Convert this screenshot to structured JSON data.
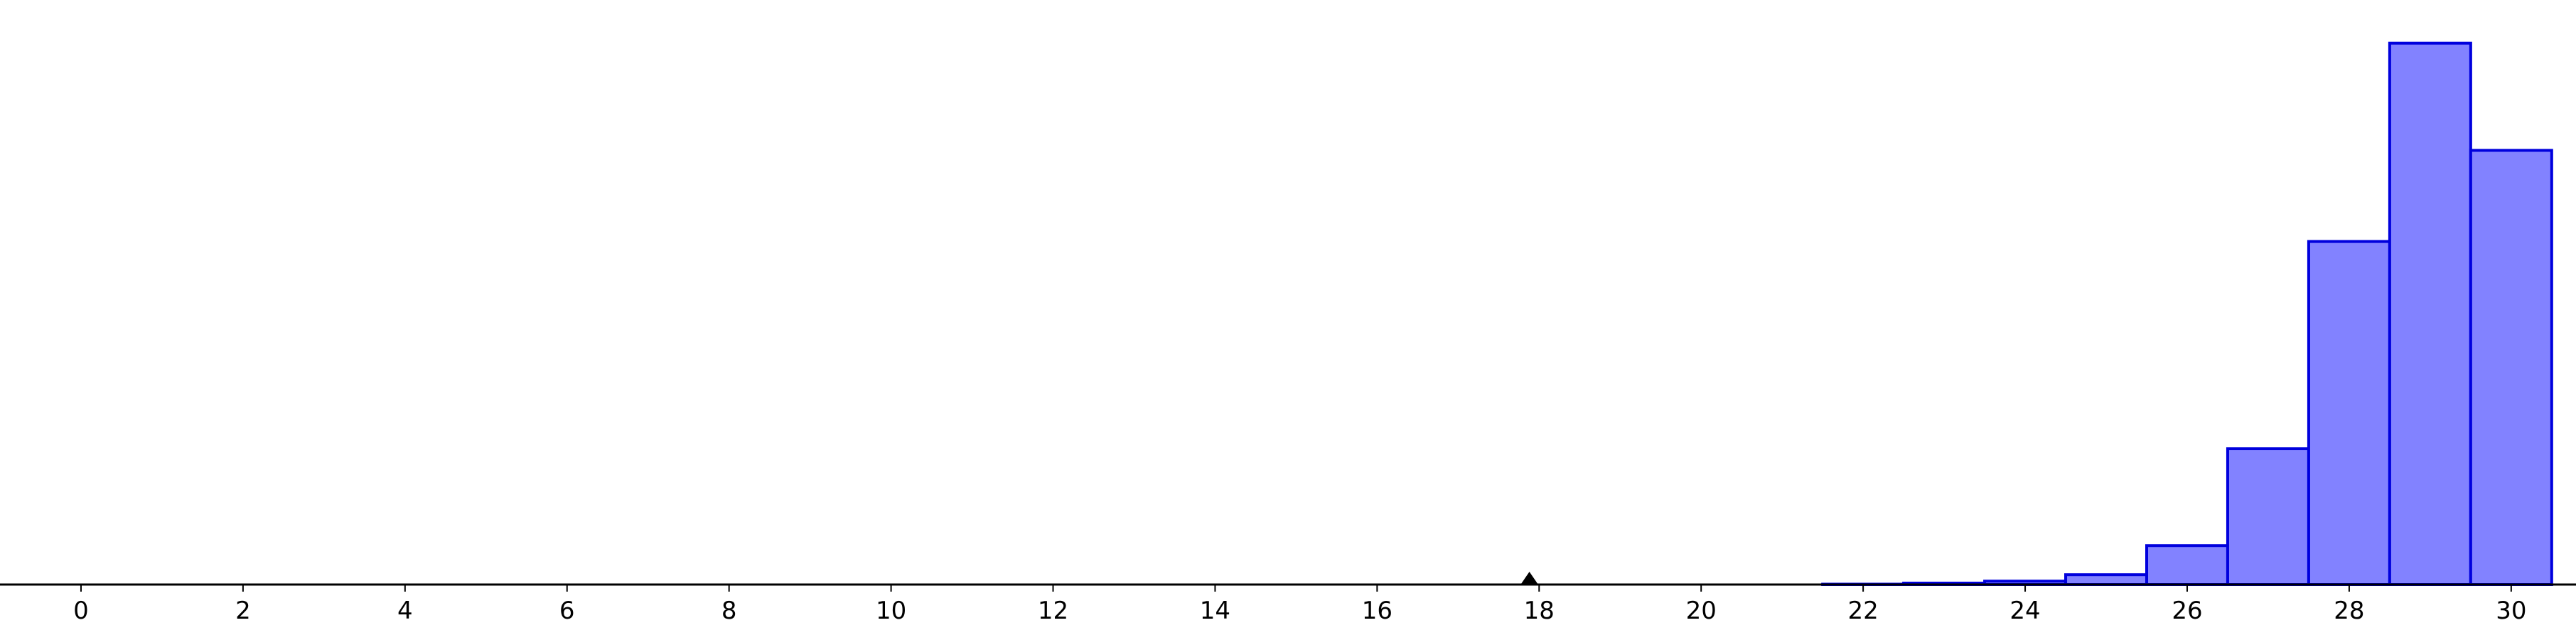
{
  "chart_data": {
    "type": "bar",
    "x_ticks": [
      "0",
      "2",
      "4",
      "6",
      "8",
      "10",
      "12",
      "14",
      "16",
      "18",
      "20",
      "22",
      "24",
      "26",
      "28",
      "30"
    ],
    "xlim": [
      -1,
      30.8
    ],
    "ylim": [
      0,
      0.32
    ],
    "bars": [
      {
        "x": 22,
        "value": 0.0002
      },
      {
        "x": 23,
        "value": 0.0008
      },
      {
        "x": 24,
        "value": 0.0019
      },
      {
        "x": 25,
        "value": 0.0055
      },
      {
        "x": 26,
        "value": 0.0218
      },
      {
        "x": 27,
        "value": 0.076
      },
      {
        "x": 28,
        "value": 0.192
      },
      {
        "x": 29,
        "value": 0.303
      },
      {
        "x": 30,
        "value": 0.243
      }
    ],
    "bar_width": 1,
    "marker_x": 17.88,
    "colors": {
      "bar_fill": "#8282ff",
      "bar_stroke": "#0000dd",
      "axis": "#000000",
      "marker": "#000000"
    },
    "grid": false,
    "legend": "none"
  }
}
